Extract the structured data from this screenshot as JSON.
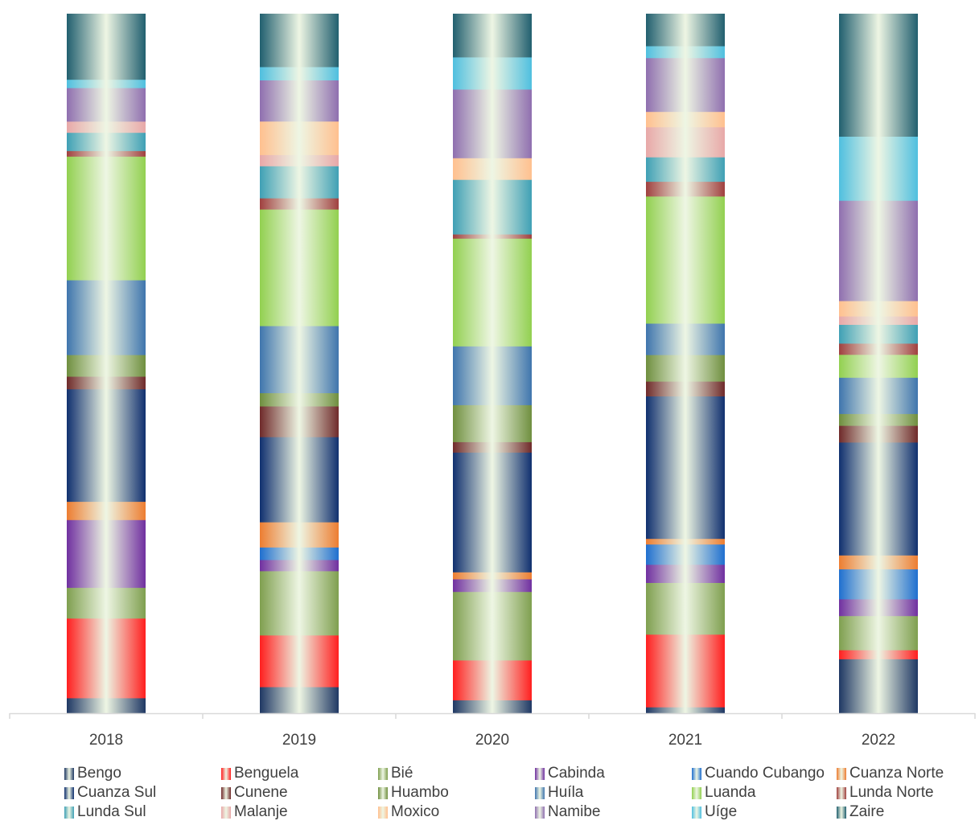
{
  "chart_data": {
    "type": "bar",
    "stacked": true,
    "normalized": true,
    "categories": [
      "2018",
      "2019",
      "2020",
      "2021",
      "2022"
    ],
    "ylim": [
      0,
      1
    ],
    "grid": false,
    "legend_placement": "bottom",
    "series": [
      {
        "name": "Bengo",
        "color": "#1f3864",
        "values": [
          0.022,
          0.038,
          0.019,
          0.009,
          0.078
        ]
      },
      {
        "name": "Benguela",
        "color": "#ff1f1f",
        "values": [
          0.114,
          0.074,
          0.057,
          0.104,
          0.013
        ]
      },
      {
        "name": "Bié",
        "color": "#7f9f4f",
        "values": [
          0.044,
          0.092,
          0.098,
          0.074,
          0.049
        ]
      },
      {
        "name": "Cabinda",
        "color": "#7030a0",
        "values": [
          0.097,
          0.016,
          0.018,
          0.026,
          0.024
        ]
      },
      {
        "name": "Cuando Cubango",
        "color": "#1f6fcf",
        "values": [
          0.0,
          0.018,
          0.0,
          0.029,
          0.043
        ]
      },
      {
        "name": "Cuanza Norte",
        "color": "#ed7d31",
        "values": [
          0.026,
          0.036,
          0.01,
          0.008,
          0.02
        ]
      },
      {
        "name": "Cuanza Sul",
        "color": "#10306f",
        "values": [
          0.161,
          0.122,
          0.171,
          0.204,
          0.162
        ]
      },
      {
        "name": "Cunene",
        "color": "#6f2a2a",
        "values": [
          0.018,
          0.044,
          0.015,
          0.021,
          0.024
        ]
      },
      {
        "name": "Huambo",
        "color": "#6f8f3f",
        "values": [
          0.031,
          0.019,
          0.053,
          0.038,
          0.017
        ]
      },
      {
        "name": "Huíla",
        "color": "#3f75ad",
        "values": [
          0.107,
          0.096,
          0.084,
          0.045,
          0.052
        ]
      },
      {
        "name": "Luanda",
        "color": "#92d050",
        "values": [
          0.177,
          0.167,
          0.154,
          0.182,
          0.033
        ]
      },
      {
        "name": "Lunda Norte",
        "color": "#a0403f",
        "values": [
          0.008,
          0.016,
          0.006,
          0.021,
          0.016
        ]
      },
      {
        "name": "Lunda Sul",
        "color": "#3fa0b5",
        "values": [
          0.026,
          0.046,
          0.078,
          0.035,
          0.027
        ]
      },
      {
        "name": "Malanje",
        "color": "#e8a8a8",
        "values": [
          0.016,
          0.016,
          0.0,
          0.043,
          0.012
        ]
      },
      {
        "name": "Moxico",
        "color": "#ffc08f",
        "values": [
          0.0,
          0.048,
          0.031,
          0.022,
          0.022
        ]
      },
      {
        "name": "Namibe",
        "color": "#8f6faf",
        "values": [
          0.048,
          0.059,
          0.098,
          0.077,
          0.144
        ]
      },
      {
        "name": "Uíge",
        "color": "#4fbfdf",
        "values": [
          0.012,
          0.019,
          0.046,
          0.017,
          0.092
        ]
      },
      {
        "name": "Zaire",
        "color": "#215f6f",
        "values": [
          0.094,
          0.076,
          0.062,
          0.046,
          0.176
        ]
      }
    ]
  }
}
